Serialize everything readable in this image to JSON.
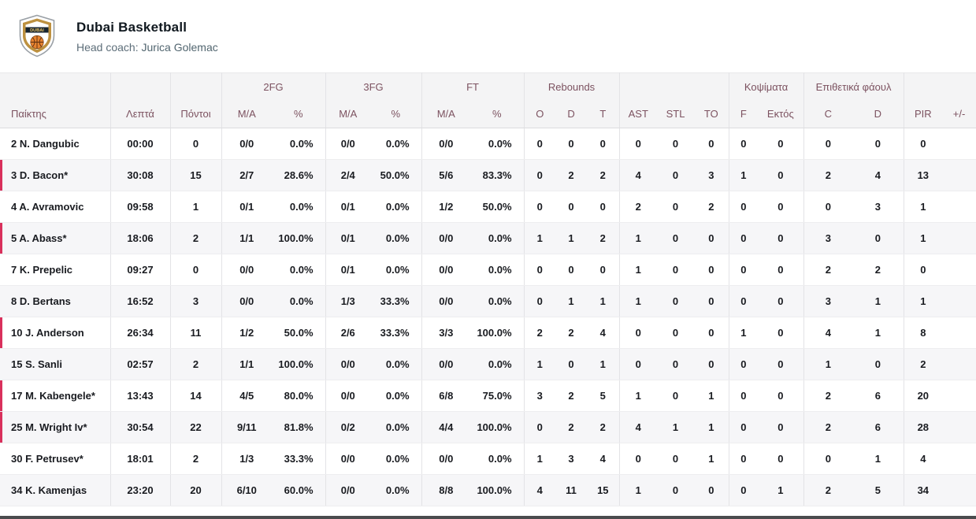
{
  "team": {
    "name": "Dubai Basketball",
    "coach_label": "Head coach:",
    "coach_name": "Jurica Golemac",
    "logo_text": "DUBAI"
  },
  "colors": {
    "on_court_marker": "#d9305c",
    "header_text": "#7c5260",
    "header_bg": "#f4f4f5",
    "row_stripe": "#f6f6f8",
    "logo_gold": "#bd9140",
    "logo_ball_orange": "#e7832f"
  },
  "table": {
    "groups": {
      "fg2": "2FG",
      "fg3": "3FG",
      "ft": "FT",
      "rebounds": "Rebounds",
      "blocks": "Κοψίματα",
      "fouls": "Επιθετικά φάουλ"
    },
    "columns": [
      "Παίκτης",
      "Λεπτά",
      "Πόντοι",
      "M/A",
      "%",
      "M/A",
      "%",
      "M/A",
      "%",
      "O",
      "D",
      "T",
      "AST",
      "STL",
      "TO",
      "F",
      "Εκτός",
      "C",
      "D",
      "PIR",
      "+/-"
    ],
    "rows": [
      {
        "player": "2 N. Dangubic",
        "min": "00:00",
        "pts": "0",
        "fg2_ma": "0/0",
        "fg2_pct": "0.0%",
        "fg3_ma": "0/0",
        "fg3_pct": "0.0%",
        "ft_ma": "0/0",
        "ft_pct": "0.0%",
        "reb_o": "0",
        "reb_d": "0",
        "reb_t": "0",
        "ast": "0",
        "stl": "0",
        "to": "0",
        "blk_f": "0",
        "blk_against": "0",
        "fouls_c": "0",
        "fouls_d": "0",
        "pir": "0",
        "plus_minus": "",
        "on_court": false
      },
      {
        "player": "3 D. Bacon*",
        "min": "30:08",
        "pts": "15",
        "fg2_ma": "2/7",
        "fg2_pct": "28.6%",
        "fg3_ma": "2/4",
        "fg3_pct": "50.0%",
        "ft_ma": "5/6",
        "ft_pct": "83.3%",
        "reb_o": "0",
        "reb_d": "2",
        "reb_t": "2",
        "ast": "4",
        "stl": "0",
        "to": "3",
        "blk_f": "1",
        "blk_against": "0",
        "fouls_c": "2",
        "fouls_d": "4",
        "pir": "13",
        "plus_minus": "",
        "on_court": true
      },
      {
        "player": "4 A. Avramovic",
        "min": "09:58",
        "pts": "1",
        "fg2_ma": "0/1",
        "fg2_pct": "0.0%",
        "fg3_ma": "0/1",
        "fg3_pct": "0.0%",
        "ft_ma": "1/2",
        "ft_pct": "50.0%",
        "reb_o": "0",
        "reb_d": "0",
        "reb_t": "0",
        "ast": "2",
        "stl": "0",
        "to": "2",
        "blk_f": "0",
        "blk_against": "0",
        "fouls_c": "0",
        "fouls_d": "3",
        "pir": "1",
        "plus_minus": "",
        "on_court": false
      },
      {
        "player": "5 A. Abass*",
        "min": "18:06",
        "pts": "2",
        "fg2_ma": "1/1",
        "fg2_pct": "100.0%",
        "fg3_ma": "0/1",
        "fg3_pct": "0.0%",
        "ft_ma": "0/0",
        "ft_pct": "0.0%",
        "reb_o": "1",
        "reb_d": "1",
        "reb_t": "2",
        "ast": "1",
        "stl": "0",
        "to": "0",
        "blk_f": "0",
        "blk_against": "0",
        "fouls_c": "3",
        "fouls_d": "0",
        "pir": "1",
        "plus_minus": "",
        "on_court": true
      },
      {
        "player": "7 K. Prepelic",
        "min": "09:27",
        "pts": "0",
        "fg2_ma": "0/0",
        "fg2_pct": "0.0%",
        "fg3_ma": "0/1",
        "fg3_pct": "0.0%",
        "ft_ma": "0/0",
        "ft_pct": "0.0%",
        "reb_o": "0",
        "reb_d": "0",
        "reb_t": "0",
        "ast": "1",
        "stl": "0",
        "to": "0",
        "blk_f": "0",
        "blk_against": "0",
        "fouls_c": "2",
        "fouls_d": "2",
        "pir": "0",
        "plus_minus": "",
        "on_court": false
      },
      {
        "player": "8 D. Bertans",
        "min": "16:52",
        "pts": "3",
        "fg2_ma": "0/0",
        "fg2_pct": "0.0%",
        "fg3_ma": "1/3",
        "fg3_pct": "33.3%",
        "ft_ma": "0/0",
        "ft_pct": "0.0%",
        "reb_o": "0",
        "reb_d": "1",
        "reb_t": "1",
        "ast": "1",
        "stl": "0",
        "to": "0",
        "blk_f": "0",
        "blk_against": "0",
        "fouls_c": "3",
        "fouls_d": "1",
        "pir": "1",
        "plus_minus": "",
        "on_court": false
      },
      {
        "player": "10 J. Anderson",
        "min": "26:34",
        "pts": "11",
        "fg2_ma": "1/2",
        "fg2_pct": "50.0%",
        "fg3_ma": "2/6",
        "fg3_pct": "33.3%",
        "ft_ma": "3/3",
        "ft_pct": "100.0%",
        "reb_o": "2",
        "reb_d": "2",
        "reb_t": "4",
        "ast": "0",
        "stl": "0",
        "to": "0",
        "blk_f": "1",
        "blk_against": "0",
        "fouls_c": "4",
        "fouls_d": "1",
        "pir": "8",
        "plus_minus": "",
        "on_court": true
      },
      {
        "player": "15 S. Sanli",
        "min": "02:57",
        "pts": "2",
        "fg2_ma": "1/1",
        "fg2_pct": "100.0%",
        "fg3_ma": "0/0",
        "fg3_pct": "0.0%",
        "ft_ma": "0/0",
        "ft_pct": "0.0%",
        "reb_o": "1",
        "reb_d": "0",
        "reb_t": "1",
        "ast": "0",
        "stl": "0",
        "to": "0",
        "blk_f": "0",
        "blk_against": "0",
        "fouls_c": "1",
        "fouls_d": "0",
        "pir": "2",
        "plus_minus": "",
        "on_court": false
      },
      {
        "player": "17 M. Kabengele*",
        "min": "13:43",
        "pts": "14",
        "fg2_ma": "4/5",
        "fg2_pct": "80.0%",
        "fg3_ma": "0/0",
        "fg3_pct": "0.0%",
        "ft_ma": "6/8",
        "ft_pct": "75.0%",
        "reb_o": "3",
        "reb_d": "2",
        "reb_t": "5",
        "ast": "1",
        "stl": "0",
        "to": "1",
        "blk_f": "0",
        "blk_against": "0",
        "fouls_c": "2",
        "fouls_d": "6",
        "pir": "20",
        "plus_minus": "",
        "on_court": true
      },
      {
        "player": "25 M. Wright Iv*",
        "min": "30:54",
        "pts": "22",
        "fg2_ma": "9/11",
        "fg2_pct": "81.8%",
        "fg3_ma": "0/2",
        "fg3_pct": "0.0%",
        "ft_ma": "4/4",
        "ft_pct": "100.0%",
        "reb_o": "0",
        "reb_d": "2",
        "reb_t": "2",
        "ast": "4",
        "stl": "1",
        "to": "1",
        "blk_f": "0",
        "blk_against": "0",
        "fouls_c": "2",
        "fouls_d": "6",
        "pir": "28",
        "plus_minus": "",
        "on_court": true
      },
      {
        "player": "30 F. Petrusev*",
        "min": "18:01",
        "pts": "2",
        "fg2_ma": "1/3",
        "fg2_pct": "33.3%",
        "fg3_ma": "0/0",
        "fg3_pct": "0.0%",
        "ft_ma": "0/0",
        "ft_pct": "0.0%",
        "reb_o": "1",
        "reb_d": "3",
        "reb_t": "4",
        "ast": "0",
        "stl": "0",
        "to": "1",
        "blk_f": "0",
        "blk_against": "0",
        "fouls_c": "0",
        "fouls_d": "1",
        "pir": "4",
        "plus_minus": "",
        "on_court": false
      },
      {
        "player": "34 K. Kamenjas",
        "min": "23:20",
        "pts": "20",
        "fg2_ma": "6/10",
        "fg2_pct": "60.0%",
        "fg3_ma": "0/0",
        "fg3_pct": "0.0%",
        "ft_ma": "8/8",
        "ft_pct": "100.0%",
        "reb_o": "4",
        "reb_d": "11",
        "reb_t": "15",
        "ast": "1",
        "stl": "0",
        "to": "0",
        "blk_f": "0",
        "blk_against": "1",
        "fouls_c": "2",
        "fouls_d": "5",
        "pir": "34",
        "plus_minus": "",
        "on_court": false
      }
    ]
  }
}
